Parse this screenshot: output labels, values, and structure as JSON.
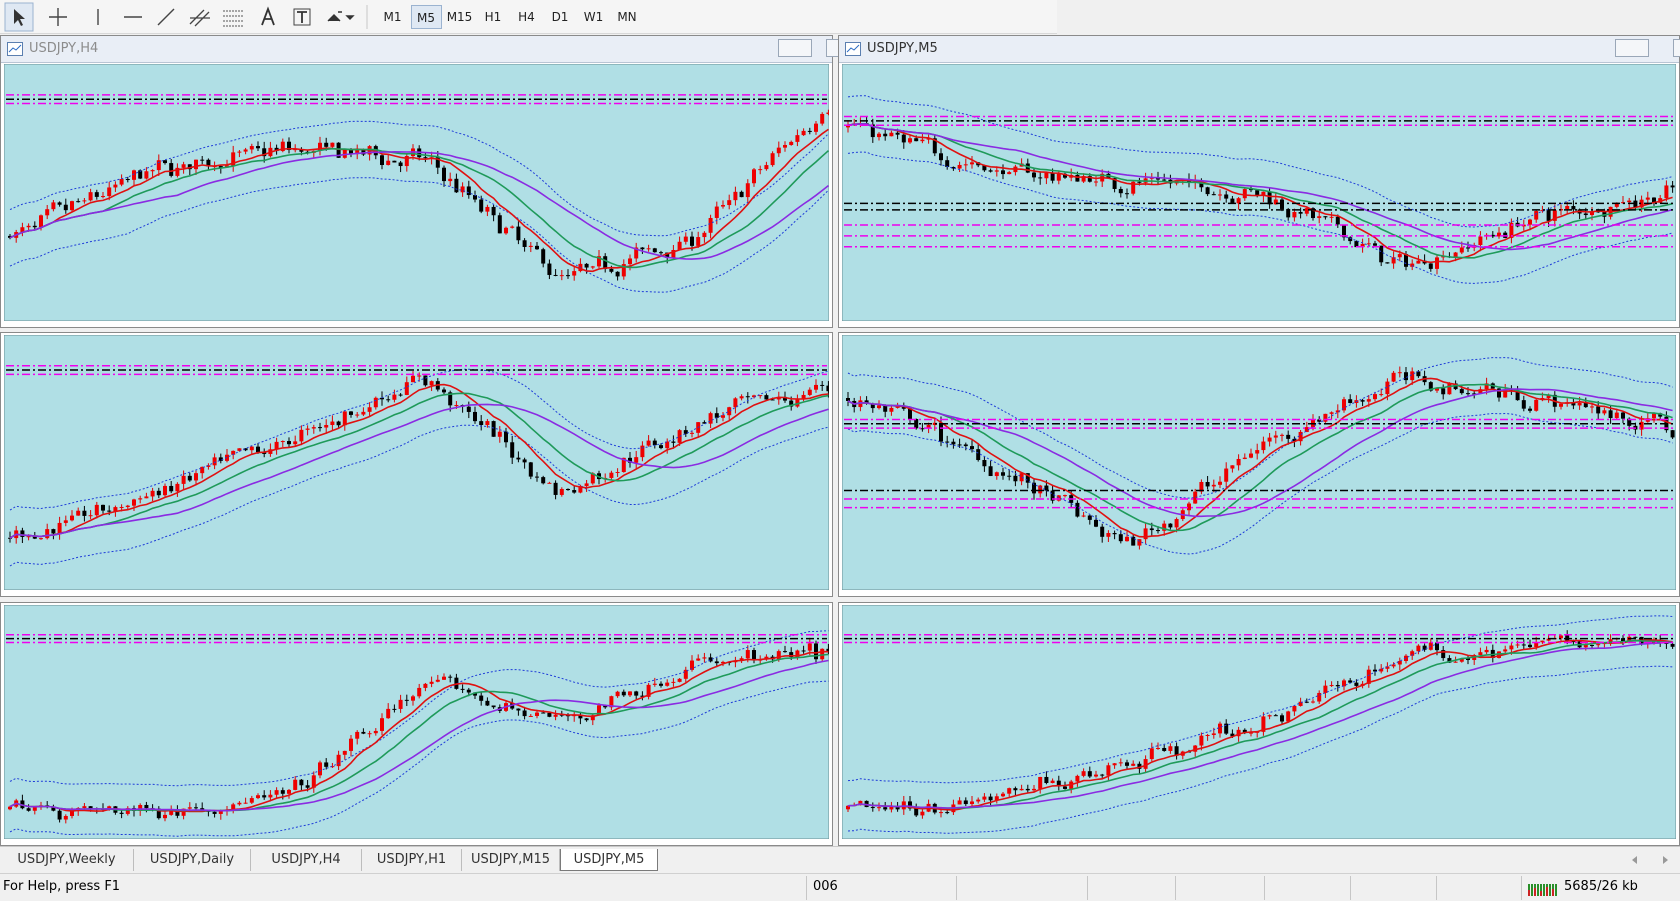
{
  "toolbar": {
    "timeframes": [
      "M1",
      "M5",
      "M15",
      "H1",
      "H4",
      "D1",
      "W1",
      "MN"
    ],
    "active_index": 1
  },
  "windows": [
    {
      "title": "USDJPY,H4"
    },
    {
      "title": "USDJPY,M5"
    }
  ],
  "tabs": [
    "USDJPY,Weekly",
    "USDJPY,Daily",
    "USDJPY,H4",
    "USDJPY,H1",
    "USDJPY,M15",
    "USDJPY,M5"
  ],
  "active_tab": 5,
  "status": {
    "help": "For Help, press F1",
    "code": "006",
    "traffic": "5685/26 kb"
  }
}
